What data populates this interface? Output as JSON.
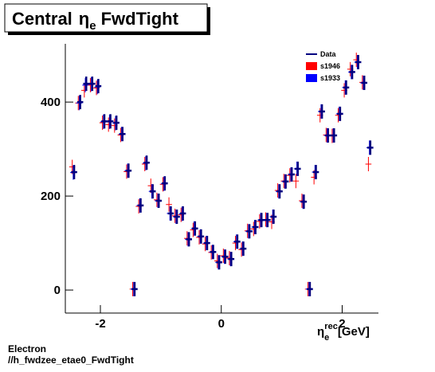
{
  "chart_data": {
    "type": "scatter",
    "title": {
      "main": "Central",
      "symbol": "η",
      "subscript": "e",
      "suffix": "FwdTight"
    },
    "x_label": {
      "symbol": "η",
      "subscript": "e",
      "superscript": "rec",
      "unit": "[GeV]"
    },
    "footer": [
      "Electron",
      "//h_fwdzee_etae0_FwdTight"
    ],
    "x": [
      -2.45,
      -2.35,
      -2.25,
      -2.15,
      -2.05,
      -1.95,
      -1.85,
      -1.75,
      -1.65,
      -1.55,
      -1.45,
      -1.35,
      -1.25,
      -1.15,
      -1.05,
      -0.95,
      -0.85,
      -0.75,
      -0.65,
      -0.55,
      -0.45,
      -0.35,
      -0.25,
      -0.15,
      -0.05,
      0.05,
      0.15,
      0.25,
      0.35,
      0.45,
      0.55,
      0.65,
      0.75,
      0.85,
      0.95,
      1.05,
      1.15,
      1.25,
      1.35,
      1.45,
      1.55,
      1.65,
      1.75,
      1.85,
      1.95,
      2.05,
      2.15,
      2.25,
      2.35,
      2.45
    ],
    "series": [
      {
        "name": "s1946",
        "color": "#ff0000",
        "values": [
          262,
          398,
          425,
          436,
          430,
          356,
          352,
          350,
          330,
          252,
          2,
          178,
          268,
          222,
          192,
          225,
          182,
          158,
          160,
          110,
          128,
          112,
          98,
          80,
          62,
          73,
          68,
          100,
          86,
          126,
          130,
          146,
          150,
          145,
          212,
          232,
          244,
          232,
          190,
          2,
          240,
          372,
          330,
          328,
          372,
          425,
          470,
          490,
          442,
          268
        ]
      },
      {
        "name": "s1933",
        "color": "#0000ff",
        "values": [
          250,
          398,
          436,
          438,
          432,
          358,
          358,
          355,
          332,
          254,
          2,
          180,
          270,
          210,
          190,
          226,
          163,
          156,
          162,
          108,
          131,
          114,
          100,
          81,
          59,
          71,
          66,
          103,
          88,
          125,
          134,
          149,
          149,
          156,
          210,
          231,
          246,
          258,
          188,
          2,
          251,
          380,
          329,
          329,
          375,
          431,
          464,
          485,
          441,
          303
        ]
      },
      {
        "name": "Data",
        "color": "#000080",
        "values": [
          251,
          400,
          439,
          439,
          434,
          359,
          359,
          356,
          332,
          254,
          2,
          180,
          271,
          210,
          190,
          227,
          163,
          156,
          163,
          108,
          131,
          114,
          100,
          81,
          59,
          71,
          66,
          103,
          88,
          125,
          134,
          149,
          149,
          156,
          210,
          231,
          246,
          258,
          188,
          2,
          251,
          380,
          329,
          329,
          375,
          431,
          464,
          485,
          441,
          303
        ]
      }
    ],
    "xlim": [
      -2.58,
      2.6
    ],
    "ylim": [
      -49,
      524
    ],
    "xticks": [
      -2,
      0,
      2
    ],
    "yticks": [
      0,
      200,
      400
    ]
  }
}
